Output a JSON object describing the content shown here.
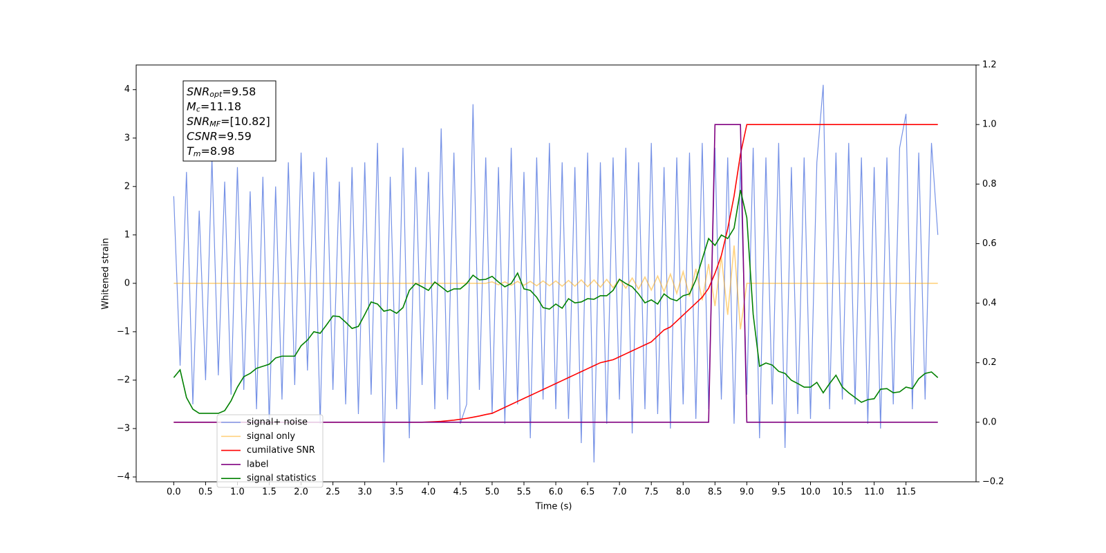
{
  "chart_data": {
    "type": "line",
    "xlabel": "Time (s)",
    "ylabel": "Whitened strain",
    "xlim": [
      -0.59,
      12.6
    ],
    "ylim": [
      -4.1,
      4.51
    ],
    "y2lim": [
      -0.2,
      1.2
    ],
    "xticks": [
      {
        "value": 0,
        "label": "0.0"
      },
      {
        "value": 0.5,
        "label": "0.5"
      },
      {
        "value": 1,
        "label": "1.0"
      },
      {
        "value": 1.5,
        "label": "1.5"
      },
      {
        "value": 2,
        "label": "2.0"
      },
      {
        "value": 2.5,
        "label": "2.5"
      },
      {
        "value": 3,
        "label": "3.0"
      },
      {
        "value": 3.5,
        "label": "3.5"
      },
      {
        "value": 4,
        "label": "4.0"
      },
      {
        "value": 4.5,
        "label": "4.5"
      },
      {
        "value": 5,
        "label": "5.0"
      },
      {
        "value": 5.5,
        "label": "5.5"
      },
      {
        "value": 6,
        "label": "6.0"
      },
      {
        "value": 6.5,
        "label": "6.5"
      },
      {
        "value": 7,
        "label": "7.0"
      },
      {
        "value": 7.5,
        "label": "7.5"
      },
      {
        "value": 8,
        "label": "8.0"
      },
      {
        "value": 8.5,
        "label": "8.5"
      },
      {
        "value": 9,
        "label": "9.0"
      },
      {
        "value": 9.5,
        "label": "9.5"
      },
      {
        "value": 10,
        "label": "10.0"
      },
      {
        "value": 10.5,
        "label": "10.5"
      },
      {
        "value": 11,
        "label": "11.0"
      },
      {
        "value": 11.5,
        "label": "11.5"
      }
    ],
    "yticks": [
      {
        "value": -4,
        "label": "−4"
      },
      {
        "value": -3,
        "label": "−3"
      },
      {
        "value": -2,
        "label": "−2"
      },
      {
        "value": -1,
        "label": "−1"
      },
      0,
      1,
      2,
      3,
      4
    ],
    "y2ticks": [
      {
        "value": -0.2,
        "label": "−0.2"
      },
      {
        "value": 0,
        "label": "0.0"
      },
      {
        "value": 0.2,
        "label": "0.2"
      },
      {
        "value": 0.4,
        "label": "0.4"
      },
      {
        "value": 0.6,
        "label": "0.6"
      },
      {
        "value": 0.8,
        "label": "0.8"
      },
      {
        "value": 1,
        "label": "1.0"
      },
      {
        "value": 1.2,
        "label": "1.2"
      }
    ],
    "legend_loc": "lower left",
    "annotations": [
      {
        "base": "SNR",
        "sub": "opt",
        "rest": "=9.58"
      },
      {
        "base": "M",
        "sub": "c",
        "rest": "=11.18"
      },
      {
        "base": "SNR",
        "sub": "MF",
        "rest": "=[10.82]"
      },
      {
        "base": "CSNR",
        "sub": "",
        "rest": "=9.59"
      },
      {
        "base": "T",
        "sub": "m",
        "rest": "=8.98"
      }
    ],
    "x": [
      0,
      0.1,
      0.2,
      0.3,
      0.4,
      0.5,
      0.6,
      0.7,
      0.8,
      0.9,
      1,
      1.1,
      1.2,
      1.3,
      1.4,
      1.5,
      1.6,
      1.7,
      1.8,
      1.9,
      2,
      2.1,
      2.2,
      2.3,
      2.4,
      2.5,
      2.6,
      2.7,
      2.8,
      2.9,
      3,
      3.1,
      3.2,
      3.3,
      3.4,
      3.5,
      3.6,
      3.7,
      3.8,
      3.9,
      4,
      4.1,
      4.2,
      4.3,
      4.4,
      4.5,
      4.6,
      4.7,
      4.8,
      4.9,
      5,
      5.1,
      5.2,
      5.3,
      5.4,
      5.5,
      5.6,
      5.7,
      5.8,
      5.9,
      6,
      6.1,
      6.2,
      6.3,
      6.4,
      6.5,
      6.6,
      6.7,
      6.8,
      6.9,
      7,
      7.1,
      7.2,
      7.3,
      7.4,
      7.5,
      7.6,
      7.7,
      7.8,
      7.9,
      8,
      8.1,
      8.2,
      8.3,
      8.4,
      8.5,
      8.6,
      8.7,
      8.8,
      8.9,
      9,
      9.1,
      9.2,
      9.3,
      9.4,
      9.5,
      9.6,
      9.7,
      9.8,
      9.9,
      10,
      10.1,
      10.2,
      10.3,
      10.4,
      10.5,
      10.6,
      10.7,
      10.8,
      10.9,
      11,
      11.1,
      11.2,
      11.3,
      11.4,
      11.5,
      11.6,
      11.7,
      11.8,
      11.9,
      12
    ],
    "series": [
      {
        "name": "signal+ noise",
        "color": "#7591e6",
        "values": [
          1.8,
          -1.7,
          2.3,
          -2.5,
          1.5,
          -2.0,
          2.6,
          -1.9,
          2.1,
          -2.3,
          2.4,
          -2.2,
          1.9,
          -2.6,
          2.2,
          -2.9,
          2.0,
          -2.4,
          2.5,
          -2.1,
          2.7,
          -1.8,
          2.3,
          -2.9,
          2.6,
          -2.2,
          2.1,
          -2.5,
          2.4,
          -2.7,
          2.5,
          -2.3,
          2.9,
          -3.7,
          2.2,
          -2.6,
          2.8,
          -3.2,
          2.4,
          -2.1,
          2.3,
          -2.6,
          3.2,
          -2.4,
          2.7,
          -2.9,
          -2.5,
          3.7,
          -2.2,
          2.6,
          -2.7,
          2.4,
          -2.9,
          2.8,
          -2.5,
          2.3,
          -3.2,
          2.6,
          -2.4,
          2.9,
          -2.6,
          2.5,
          -2.8,
          2.4,
          -3.3,
          2.7,
          -3.7,
          2.5,
          -2.9,
          2.6,
          -2.4,
          2.8,
          -3.1,
          2.5,
          -2.6,
          2.9,
          -2.7,
          2.4,
          -3.0,
          2.6,
          -2.5,
          2.7,
          -2.8,
          2.9,
          -2.6,
          2.8,
          -2.4,
          2.6,
          -2.9,
          2.5,
          -2.3,
          2.8,
          -3.2,
          2.6,
          -2.5,
          2.9,
          -3.4,
          2.4,
          -2.7,
          2.6,
          -2.8,
          2.5,
          4.1,
          -2.6,
          2.7,
          -2.4,
          2.9,
          -2.5,
          2.6,
          -2.9,
          2.4,
          -3.0,
          2.6,
          -2.5,
          2.8,
          3.5,
          -2.6,
          2.7,
          -2.4,
          2.9,
          1.0
        ]
      },
      {
        "name": "signal only",
        "color": "#ffa500",
        "values": [
          0,
          0,
          0,
          0,
          0,
          0,
          0,
          0,
          0,
          0,
          0,
          0,
          0,
          0,
          0,
          0,
          0,
          0,
          0,
          0,
          0,
          0,
          0,
          0,
          0,
          0,
          0,
          0,
          0,
          0,
          0,
          0,
          0,
          0,
          0,
          0,
          0,
          0,
          0,
          0,
          0,
          0,
          0,
          0,
          0,
          0,
          0,
          0,
          0,
          0,
          0.03,
          -0.03,
          0.03,
          -0.04,
          0.04,
          -0.04,
          0.04,
          -0.05,
          0.05,
          -0.05,
          0.05,
          -0.06,
          0.06,
          -0.06,
          0.07,
          -0.07,
          0.07,
          -0.08,
          0.08,
          -0.09,
          0.09,
          -0.1,
          0.11,
          -0.12,
          0.13,
          -0.14,
          0.15,
          -0.17,
          0.19,
          -0.21,
          0.24,
          -0.27,
          0.3,
          -0.35,
          0.4,
          -0.47,
          0.55,
          -0.65,
          0.78,
          -0.95,
          0,
          0,
          0,
          0,
          0,
          0,
          0,
          0,
          0,
          0,
          0,
          0,
          0,
          0,
          0,
          0,
          0,
          0,
          0,
          0,
          0,
          0,
          0,
          0,
          0,
          0,
          0,
          0,
          0,
          0,
          0
        ]
      },
      {
        "name": "cumilative SNR",
        "color": "#ff0000",
        "axis": "y2",
        "values": [
          0,
          0,
          0,
          0,
          0,
          0,
          0,
          0,
          0,
          0,
          0,
          0,
          0,
          0,
          0,
          0,
          0,
          0,
          0,
          0,
          0,
          0,
          0,
          0,
          0,
          0,
          0,
          0,
          0,
          0,
          0,
          0,
          0,
          0,
          0,
          0,
          0,
          0,
          0,
          0,
          0.001,
          0.002,
          0.003,
          0.005,
          0.007,
          0.01,
          0.013,
          0.017,
          0.021,
          0.026,
          0.03,
          0.04,
          0.05,
          0.06,
          0.07,
          0.08,
          0.09,
          0.1,
          0.11,
          0.12,
          0.13,
          0.14,
          0.15,
          0.16,
          0.17,
          0.18,
          0.19,
          0.2,
          0.205,
          0.21,
          0.22,
          0.23,
          0.24,
          0.25,
          0.26,
          0.27,
          0.29,
          0.31,
          0.32,
          0.34,
          0.36,
          0.38,
          0.4,
          0.42,
          0.45,
          0.5,
          0.56,
          0.65,
          0.76,
          0.9,
          1,
          1,
          1,
          1,
          1,
          1,
          1,
          1,
          1,
          1,
          1,
          1,
          1,
          1,
          1,
          1,
          1,
          1,
          1,
          1,
          1,
          1,
          1,
          1,
          1,
          1,
          1,
          1,
          1,
          1,
          1
        ]
      },
      {
        "name": "label",
        "color": "#800080",
        "axis": "y2",
        "values": [
          0,
          0,
          0,
          0,
          0,
          0,
          0,
          0,
          0,
          0,
          0,
          0,
          0,
          0,
          0,
          0,
          0,
          0,
          0,
          0,
          0,
          0,
          0,
          0,
          0,
          0,
          0,
          0,
          0,
          0,
          0,
          0,
          0,
          0,
          0,
          0,
          0,
          0,
          0,
          0,
          0,
          0,
          0,
          0,
          0,
          0,
          0,
          0,
          0,
          0,
          0,
          0,
          0,
          0,
          0,
          0,
          0,
          0,
          0,
          0,
          0,
          0,
          0,
          0,
          0,
          0,
          0,
          0,
          0,
          0,
          0,
          0,
          0,
          0,
          0,
          0,
          0,
          0,
          0,
          0,
          0,
          0,
          0,
          0,
          0,
          1,
          1,
          1,
          1,
          1,
          0,
          0,
          0,
          0,
          0,
          0,
          0,
          0,
          0,
          0,
          0,
          0,
          0,
          0,
          0,
          0,
          0,
          0,
          0,
          0,
          0,
          0,
          0,
          0,
          0,
          0,
          0,
          0,
          0,
          0,
          0
        ]
      },
      {
        "name": "signal statistics",
        "color": "#008000",
        "axis": "y2",
        "values": [
          0.15,
          0.176,
          0.083,
          0.044,
          0.03,
          0.03,
          0.03,
          0.03,
          0.039,
          0.072,
          0.118,
          0.153,
          0.164,
          0.181,
          0.188,
          0.195,
          0.216,
          0.222,
          0.222,
          0.222,
          0.257,
          0.276,
          0.304,
          0.299,
          0.327,
          0.357,
          0.355,
          0.336,
          0.315,
          0.322,
          0.362,
          0.404,
          0.397,
          0.373,
          0.378,
          0.366,
          0.385,
          0.443,
          0.466,
          0.455,
          0.443,
          0.471,
          0.455,
          0.438,
          0.448,
          0.448,
          0.466,
          0.494,
          0.478,
          0.48,
          0.49,
          0.471,
          0.455,
          0.466,
          0.501,
          0.448,
          0.443,
          0.42,
          0.385,
          0.38,
          0.397,
          0.383,
          0.415,
          0.401,
          0.404,
          0.415,
          0.413,
          0.425,
          0.425,
          0.443,
          0.48,
          0.466,
          0.455,
          0.431,
          0.401,
          0.411,
          0.397,
          0.431,
          0.415,
          0.408,
          0.425,
          0.431,
          0.478,
          0.548,
          0.617,
          0.594,
          0.629,
          0.617,
          0.652,
          0.78,
          0.687,
          0.362,
          0.188,
          0.199,
          0.192,
          0.171,
          0.164,
          0.141,
          0.13,
          0.118,
          0.118,
          0.134,
          0.099,
          0.13,
          0.158,
          0.118,
          0.099,
          0.083,
          0.067,
          0.076,
          0.079,
          0.111,
          0.113,
          0.099,
          0.102,
          0.118,
          0.113,
          0.146,
          0.164,
          0.169,
          0.15
        ]
      }
    ]
  }
}
